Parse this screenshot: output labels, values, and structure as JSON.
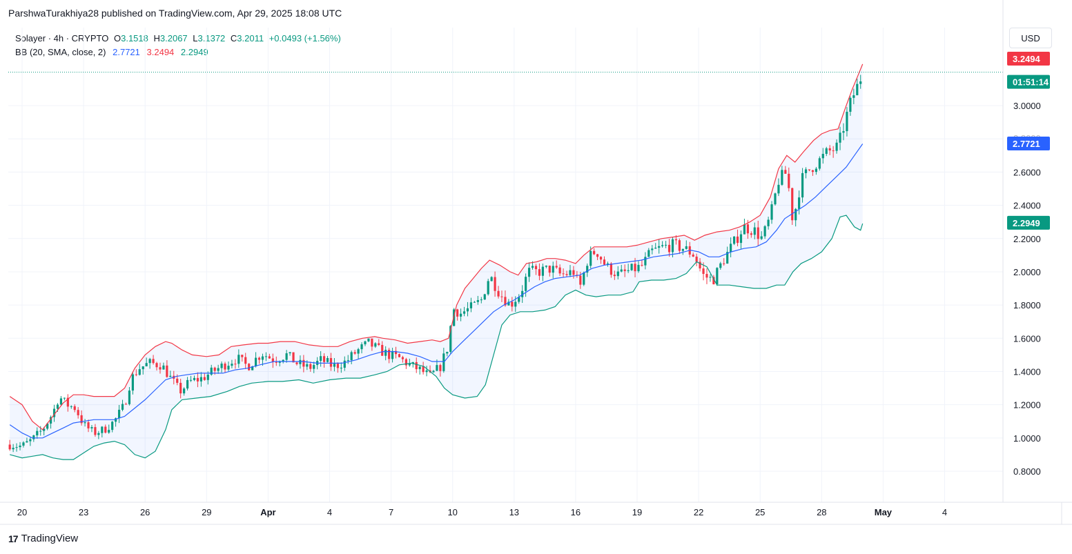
{
  "header": {
    "publisher_line": "ParshwaTurakhiya28 published on TradingView.com, Apr 29, 2025 18:08 UTC"
  },
  "legend": {
    "symbol": "Solayer · 4h · CRYPTO",
    "o_label": "O",
    "o_value": "3.1518",
    "h_label": "H",
    "h_value": "3.2067",
    "l_label": "L",
    "l_value": "3.1372",
    "c_label": "C",
    "c_value": "3.2011",
    "change": "+0.0493 (+1.56%)",
    "bb_label": "BB (20, SMA, close, 2)",
    "bb_mid": "2.7721",
    "bb_upper": "3.2494",
    "bb_lower": "2.2949"
  },
  "currency_button": "USD",
  "brand": {
    "name": "TradingView",
    "logo_glyph": "17"
  },
  "colors": {
    "up": "#089981",
    "down": "#f23645",
    "mid": "#2962ff",
    "upper_band": "#f23645",
    "lower_band": "#089981",
    "band_fill": "#2962ff",
    "grid": "#f0f3fa",
    "axis_text": "#131722"
  },
  "chart_data": {
    "type": "candlestick",
    "timeframe": "4h",
    "symbol": "Solayer",
    "y_ticks": [
      "3.0000",
      "2.8000",
      "2.6000",
      "2.4000",
      "2.2000",
      "2.0000",
      "1.8000",
      "1.6000",
      "1.4000",
      "1.2000",
      "1.0000",
      "0.8000"
    ],
    "ylim": [
      0.72,
      3.42
    ],
    "x_ticks": [
      {
        "label": "20",
        "day": 0,
        "bold": false
      },
      {
        "label": "23",
        "day": 3,
        "bold": false
      },
      {
        "label": "26",
        "day": 6,
        "bold": false
      },
      {
        "label": "29",
        "day": 9,
        "bold": false
      },
      {
        "label": "Apr",
        "day": 12,
        "bold": true
      },
      {
        "label": "4",
        "day": 15,
        "bold": false
      },
      {
        "label": "7",
        "day": 18,
        "bold": false
      },
      {
        "label": "10",
        "day": 21,
        "bold": false
      },
      {
        "label": "13",
        "day": 24,
        "bold": false
      },
      {
        "label": "16",
        "day": 27,
        "bold": false
      },
      {
        "label": "19",
        "day": 30,
        "bold": false
      },
      {
        "label": "22",
        "day": 33,
        "bold": false
      },
      {
        "label": "25",
        "day": 36,
        "bold": false
      },
      {
        "label": "28",
        "day": 39,
        "bold": false
      },
      {
        "label": "May",
        "day": 42,
        "bold": true
      },
      {
        "label": "4",
        "day": 45,
        "bold": false
      }
    ],
    "close_path": [
      [
        -0.6,
        0.96
      ],
      [
        0.0,
        0.95
      ],
      [
        0.5,
        0.99
      ],
      [
        1.0,
        1.05
      ],
      [
        1.5,
        1.15
      ],
      [
        1.8,
        1.25
      ],
      [
        2.2,
        1.2
      ],
      [
        2.6,
        1.18
      ],
      [
        3.0,
        1.08
      ],
      [
        3.5,
        1.03
      ],
      [
        4.0,
        1.05
      ],
      [
        4.5,
        1.1
      ],
      [
        5.0,
        1.2
      ],
      [
        5.3,
        1.35
      ],
      [
        5.7,
        1.42
      ],
      [
        6.2,
        1.45
      ],
      [
        6.8,
        1.44
      ],
      [
        7.3,
        1.35
      ],
      [
        7.7,
        1.28
      ],
      [
        8.2,
        1.34
      ],
      [
        8.8,
        1.36
      ],
      [
        9.3,
        1.4
      ],
      [
        10.0,
        1.45
      ],
      [
        10.5,
        1.48
      ],
      [
        11.0,
        1.43
      ],
      [
        11.7,
        1.51
      ],
      [
        12.3,
        1.47
      ],
      [
        12.9,
        1.5
      ],
      [
        13.4,
        1.45
      ],
      [
        14.0,
        1.42
      ],
      [
        14.6,
        1.47
      ],
      [
        15.2,
        1.43
      ],
      [
        15.8,
        1.46
      ],
      [
        16.3,
        1.52
      ],
      [
        16.9,
        1.57
      ],
      [
        17.4,
        1.53
      ],
      [
        17.9,
        1.5
      ],
      [
        18.4,
        1.48
      ],
      [
        18.9,
        1.44
      ],
      [
        19.4,
        1.41
      ],
      [
        19.9,
        1.37
      ],
      [
        20.4,
        1.43
      ],
      [
        20.8,
        1.56
      ],
      [
        21.0,
        1.78
      ],
      [
        21.4,
        1.75
      ],
      [
        22.0,
        1.79
      ],
      [
        22.4,
        1.83
      ],
      [
        22.8,
        1.98
      ],
      [
        23.3,
        1.87
      ],
      [
        23.8,
        1.8
      ],
      [
        24.3,
        1.87
      ],
      [
        24.7,
        2.0
      ],
      [
        25.2,
        2.0
      ],
      [
        25.8,
        2.02
      ],
      [
        26.3,
        1.98
      ],
      [
        26.9,
        2.0
      ],
      [
        27.2,
        1.9
      ],
      [
        27.6,
        2.08
      ],
      [
        28.0,
        2.13
      ],
      [
        28.5,
        2.03
      ],
      [
        29.1,
        1.98
      ],
      [
        29.7,
        2.01
      ],
      [
        30.2,
        2.03
      ],
      [
        30.7,
        2.12
      ],
      [
        31.3,
        2.15
      ],
      [
        31.8,
        2.16
      ],
      [
        32.3,
        2.14
      ],
      [
        32.8,
        2.1
      ],
      [
        33.2,
        1.98
      ],
      [
        33.7,
        1.95
      ],
      [
        34.2,
        2.07
      ],
      [
        34.7,
        2.17
      ],
      [
        35.2,
        2.27
      ],
      [
        35.7,
        2.25
      ],
      [
        36.1,
        2.2
      ],
      [
        36.5,
        2.33
      ],
      [
        36.9,
        2.55
      ],
      [
        37.3,
        2.6
      ],
      [
        37.6,
        2.3
      ],
      [
        38.0,
        2.55
      ],
      [
        38.5,
        2.63
      ],
      [
        38.9,
        2.67
      ],
      [
        39.3,
        2.72
      ],
      [
        39.8,
        2.75
      ],
      [
        40.2,
        2.93
      ],
      [
        40.5,
        3.05
      ],
      [
        40.8,
        3.13
      ],
      [
        41.0,
        3.2
      ]
    ],
    "upper_band": [
      [
        -0.6,
        1.25
      ],
      [
        0.0,
        1.2
      ],
      [
        0.5,
        1.1
      ],
      [
        1.0,
        1.05
      ],
      [
        1.5,
        1.13
      ],
      [
        2.0,
        1.21
      ],
      [
        2.5,
        1.26
      ],
      [
        3.0,
        1.26
      ],
      [
        3.5,
        1.25
      ],
      [
        4.0,
        1.25
      ],
      [
        4.5,
        1.25
      ],
      [
        5.0,
        1.3
      ],
      [
        5.5,
        1.42
      ],
      [
        6.0,
        1.5
      ],
      [
        6.5,
        1.55
      ],
      [
        7.0,
        1.58
      ],
      [
        7.3,
        1.57
      ],
      [
        7.8,
        1.53
      ],
      [
        8.3,
        1.5
      ],
      [
        9.0,
        1.49
      ],
      [
        9.6,
        1.5
      ],
      [
        10.2,
        1.55
      ],
      [
        10.8,
        1.56
      ],
      [
        11.5,
        1.57
      ],
      [
        12.0,
        1.57
      ],
      [
        12.6,
        1.58
      ],
      [
        13.3,
        1.58
      ],
      [
        14.0,
        1.56
      ],
      [
        14.7,
        1.55
      ],
      [
        15.4,
        1.55
      ],
      [
        16.0,
        1.58
      ],
      [
        16.6,
        1.6
      ],
      [
        17.2,
        1.61
      ],
      [
        17.6,
        1.6
      ],
      [
        18.2,
        1.59
      ],
      [
        18.8,
        1.57
      ],
      [
        19.4,
        1.58
      ],
      [
        20.0,
        1.59
      ],
      [
        20.4,
        1.58
      ],
      [
        20.8,
        1.6
      ],
      [
        21.2,
        1.8
      ],
      [
        21.6,
        1.9
      ],
      [
        22.0,
        1.96
      ],
      [
        22.4,
        2.02
      ],
      [
        22.8,
        2.07
      ],
      [
        23.3,
        2.04
      ],
      [
        23.8,
        2.0
      ],
      [
        24.2,
        1.98
      ],
      [
        24.6,
        2.05
      ],
      [
        25.1,
        2.06
      ],
      [
        25.6,
        2.08
      ],
      [
        26.0,
        2.08
      ],
      [
        26.5,
        2.07
      ],
      [
        27.0,
        2.05
      ],
      [
        27.4,
        2.1
      ],
      [
        27.9,
        2.15
      ],
      [
        28.4,
        2.15
      ],
      [
        29.0,
        2.15
      ],
      [
        29.5,
        2.15
      ],
      [
        30.0,
        2.16
      ],
      [
        30.6,
        2.18
      ],
      [
        31.2,
        2.2
      ],
      [
        31.8,
        2.21
      ],
      [
        32.3,
        2.22
      ],
      [
        32.8,
        2.19
      ],
      [
        33.3,
        2.22
      ],
      [
        33.9,
        2.24
      ],
      [
        34.5,
        2.25
      ],
      [
        35.0,
        2.27
      ],
      [
        35.5,
        2.3
      ],
      [
        36.0,
        2.34
      ],
      [
        36.5,
        2.45
      ],
      [
        36.9,
        2.62
      ],
      [
        37.3,
        2.7
      ],
      [
        37.7,
        2.66
      ],
      [
        38.1,
        2.72
      ],
      [
        38.6,
        2.79
      ],
      [
        39.0,
        2.83
      ],
      [
        39.4,
        2.85
      ],
      [
        39.8,
        2.86
      ],
      [
        40.2,
        3.0
      ],
      [
        40.5,
        3.1
      ],
      [
        40.8,
        3.19
      ],
      [
        41.0,
        3.25
      ]
    ],
    "middle_band": [
      [
        -0.6,
        1.08
      ],
      [
        0.0,
        1.03
      ],
      [
        0.5,
        1.0
      ],
      [
        1.0,
        1.0
      ],
      [
        1.5,
        1.03
      ],
      [
        2.0,
        1.06
      ],
      [
        2.5,
        1.09
      ],
      [
        3.0,
        1.1
      ],
      [
        3.5,
        1.11
      ],
      [
        4.0,
        1.11
      ],
      [
        4.5,
        1.11
      ],
      [
        5.0,
        1.13
      ],
      [
        5.5,
        1.18
      ],
      [
        6.0,
        1.23
      ],
      [
        6.5,
        1.29
      ],
      [
        7.0,
        1.35
      ],
      [
        7.5,
        1.37
      ],
      [
        8.0,
        1.38
      ],
      [
        8.6,
        1.39
      ],
      [
        9.2,
        1.39
      ],
      [
        9.8,
        1.39
      ],
      [
        10.4,
        1.41
      ],
      [
        11.0,
        1.42
      ],
      [
        11.6,
        1.44
      ],
      [
        12.3,
        1.46
      ],
      [
        13.0,
        1.46
      ],
      [
        13.7,
        1.46
      ],
      [
        14.4,
        1.45
      ],
      [
        15.0,
        1.45
      ],
      [
        15.6,
        1.45
      ],
      [
        16.3,
        1.47
      ],
      [
        17.0,
        1.5
      ],
      [
        17.6,
        1.52
      ],
      [
        18.2,
        1.52
      ],
      [
        18.8,
        1.51
      ],
      [
        19.4,
        1.49
      ],
      [
        20.0,
        1.46
      ],
      [
        20.6,
        1.46
      ],
      [
        21.0,
        1.52
      ],
      [
        21.5,
        1.58
      ],
      [
        22.0,
        1.64
      ],
      [
        22.5,
        1.7
      ],
      [
        23.0,
        1.76
      ],
      [
        23.5,
        1.8
      ],
      [
        24.0,
        1.83
      ],
      [
        24.5,
        1.87
      ],
      [
        25.0,
        1.91
      ],
      [
        25.5,
        1.94
      ],
      [
        26.0,
        1.96
      ],
      [
        26.6,
        1.97
      ],
      [
        27.2,
        1.98
      ],
      [
        27.8,
        2.02
      ],
      [
        28.4,
        2.04
      ],
      [
        29.0,
        2.05
      ],
      [
        29.6,
        2.06
      ],
      [
        30.2,
        2.07
      ],
      [
        30.8,
        2.09
      ],
      [
        31.4,
        2.1
      ],
      [
        32.0,
        2.11
      ],
      [
        32.6,
        2.13
      ],
      [
        33.0,
        2.12
      ],
      [
        33.5,
        2.09
      ],
      [
        34.0,
        2.09
      ],
      [
        34.6,
        2.12
      ],
      [
        35.2,
        2.14
      ],
      [
        35.8,
        2.15
      ],
      [
        36.3,
        2.18
      ],
      [
        36.8,
        2.25
      ],
      [
        37.2,
        2.32
      ],
      [
        37.7,
        2.36
      ],
      [
        38.2,
        2.4
      ],
      [
        38.7,
        2.45
      ],
      [
        39.2,
        2.51
      ],
      [
        39.7,
        2.57
      ],
      [
        40.2,
        2.63
      ],
      [
        40.6,
        2.7
      ],
      [
        41.0,
        2.77
      ]
    ],
    "lower_band": [
      [
        -0.6,
        0.9
      ],
      [
        0.0,
        0.88
      ],
      [
        0.5,
        0.89
      ],
      [
        1.0,
        0.9
      ],
      [
        1.5,
        0.88
      ],
      [
        2.0,
        0.87
      ],
      [
        2.5,
        0.87
      ],
      [
        3.0,
        0.91
      ],
      [
        3.5,
        0.95
      ],
      [
        4.0,
        0.97
      ],
      [
        4.5,
        0.98
      ],
      [
        5.0,
        0.96
      ],
      [
        5.5,
        0.9
      ],
      [
        6.0,
        0.88
      ],
      [
        6.5,
        0.92
      ],
      [
        7.0,
        1.05
      ],
      [
        7.3,
        1.17
      ],
      [
        7.8,
        1.23
      ],
      [
        8.5,
        1.24
      ],
      [
        9.2,
        1.25
      ],
      [
        10.0,
        1.28
      ],
      [
        10.6,
        1.31
      ],
      [
        11.2,
        1.33
      ],
      [
        12.0,
        1.34
      ],
      [
        12.7,
        1.34
      ],
      [
        13.5,
        1.35
      ],
      [
        14.2,
        1.33
      ],
      [
        15.0,
        1.35
      ],
      [
        15.8,
        1.36
      ],
      [
        16.5,
        1.36
      ],
      [
        17.2,
        1.38
      ],
      [
        17.8,
        1.4
      ],
      [
        18.4,
        1.44
      ],
      [
        19.0,
        1.45
      ],
      [
        19.6,
        1.43
      ],
      [
        20.2,
        1.37
      ],
      [
        20.6,
        1.3
      ],
      [
        21.0,
        1.26
      ],
      [
        21.6,
        1.24
      ],
      [
        22.2,
        1.25
      ],
      [
        22.6,
        1.32
      ],
      [
        23.0,
        1.5
      ],
      [
        23.4,
        1.68
      ],
      [
        23.8,
        1.74
      ],
      [
        24.3,
        1.76
      ],
      [
        24.9,
        1.76
      ],
      [
        25.5,
        1.77
      ],
      [
        26.0,
        1.79
      ],
      [
        26.5,
        1.86
      ],
      [
        27.0,
        1.89
      ],
      [
        27.5,
        1.86
      ],
      [
        28.0,
        1.85
      ],
      [
        28.6,
        1.86
      ],
      [
        29.2,
        1.86
      ],
      [
        29.8,
        1.88
      ],
      [
        30.1,
        1.94
      ],
      [
        30.7,
        1.95
      ],
      [
        31.3,
        1.95
      ],
      [
        31.9,
        1.96
      ],
      [
        32.4,
        1.99
      ],
      [
        32.9,
        2.06
      ],
      [
        33.4,
        2.03
      ],
      [
        33.9,
        1.92
      ],
      [
        34.5,
        1.92
      ],
      [
        35.1,
        1.91
      ],
      [
        35.7,
        1.9
      ],
      [
        36.3,
        1.9
      ],
      [
        36.8,
        1.92
      ],
      [
        37.2,
        1.92
      ],
      [
        37.6,
        2.0
      ],
      [
        38.0,
        2.05
      ],
      [
        38.5,
        2.08
      ],
      [
        39.0,
        2.12
      ],
      [
        39.5,
        2.2
      ],
      [
        39.9,
        2.33
      ],
      [
        40.2,
        2.34
      ],
      [
        40.6,
        2.27
      ],
      [
        40.9,
        2.25
      ],
      [
        41.0,
        2.29
      ]
    ],
    "last_close": 3.2011,
    "badges": {
      "upper": {
        "value": "3.2494",
        "color": "#f23645",
        "y": 3.2494
      },
      "price": {
        "value": "01:51:14",
        "color": "#089981",
        "y": 3.2011
      },
      "middle": {
        "value": "2.7721",
        "color": "#2962ff",
        "y": 2.7721
      },
      "lower": {
        "value": "2.2949",
        "color": "#089981",
        "y": 2.2949
      }
    },
    "hidden_tick": "2.8000",
    "grid": true,
    "legend_placement": "top-left"
  }
}
